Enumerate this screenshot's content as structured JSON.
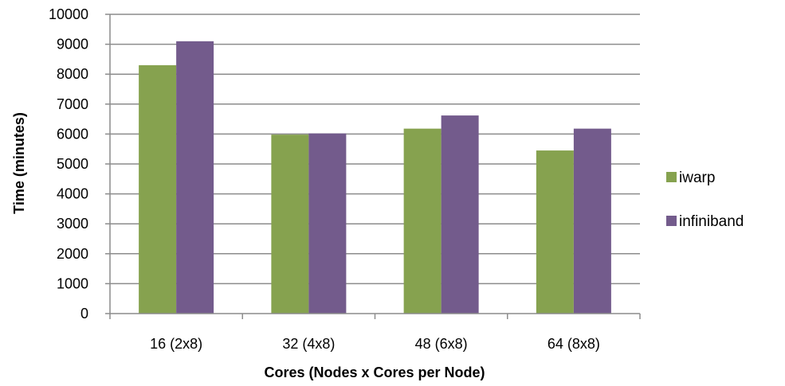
{
  "chart_data": {
    "type": "bar",
    "title": "",
    "xlabel": "Cores (Nodes x Cores per Node)",
    "ylabel": "Time (minutes)",
    "categories": [
      "16 (2x8)",
      "32 (4x8)",
      "48 (6x8)",
      "64 (8x8)"
    ],
    "ylim": [
      0,
      10000
    ],
    "yticks": [
      0,
      1000,
      2000,
      3000,
      4000,
      5000,
      6000,
      7000,
      8000,
      9000,
      10000
    ],
    "grid": true,
    "legend_position": "right",
    "series": [
      {
        "name": "iwarp",
        "color": "#86A24F",
        "values": [
          8300,
          5980,
          6180,
          5450
        ]
      },
      {
        "name": "infiniband",
        "color": "#735B8C",
        "values": [
          9100,
          6020,
          6620,
          6180
        ]
      }
    ]
  }
}
